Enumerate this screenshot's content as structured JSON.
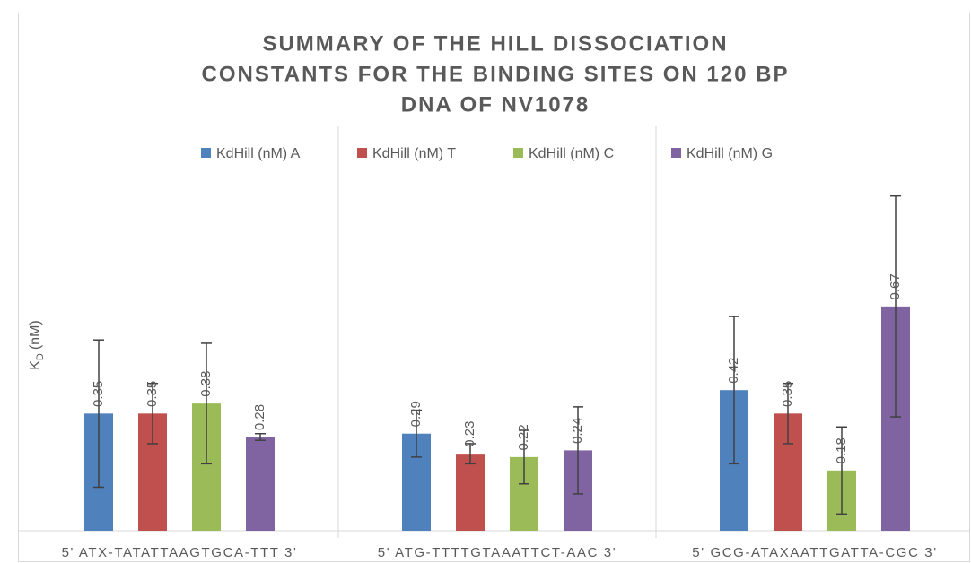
{
  "chart_data": {
    "type": "bar",
    "title": [
      "SUMMARY  OF THE HILL DISSOCIATION",
      "CONSTANTS FOR THE BINDING SITES ON 120 BP",
      "DNA OF NV1078"
    ],
    "y_label": {
      "symbol": "K",
      "subscript": "D",
      "unit": "(nM)"
    },
    "categories": [
      "5' ATX-TATATTAAGTGCA-TTT 3'",
      "5' ATG-TTTTGTAAATTCT-AAC 3'",
      "5' GCG-ATAXAATTGATTA-CGC 3'"
    ],
    "series": [
      {
        "name": "KdHill (nM) A",
        "color": "#4f81bd",
        "values": [
          0.35,
          0.29,
          0.42
        ],
        "errors": [
          0.22,
          0.07,
          0.22
        ]
      },
      {
        "name": "KdHill (nM) T",
        "color": "#c0504d",
        "values": [
          0.35,
          0.23,
          0.35
        ],
        "errors": [
          0.09,
          0.03,
          0.09
        ]
      },
      {
        "name": "KdHill (nM) C",
        "color": "#9bbb59",
        "values": [
          0.38,
          0.22,
          0.18
        ],
        "errors": [
          0.18,
          0.08,
          0.13
        ]
      },
      {
        "name": "KdHill (nM) G",
        "color": "#8064a2",
        "values": [
          0.28,
          0.24,
          0.67
        ],
        "errors": [
          0.01,
          0.13,
          0.33
        ]
      }
    ],
    "ylim": [
      0,
      1.2
    ],
    "legend": "top"
  }
}
